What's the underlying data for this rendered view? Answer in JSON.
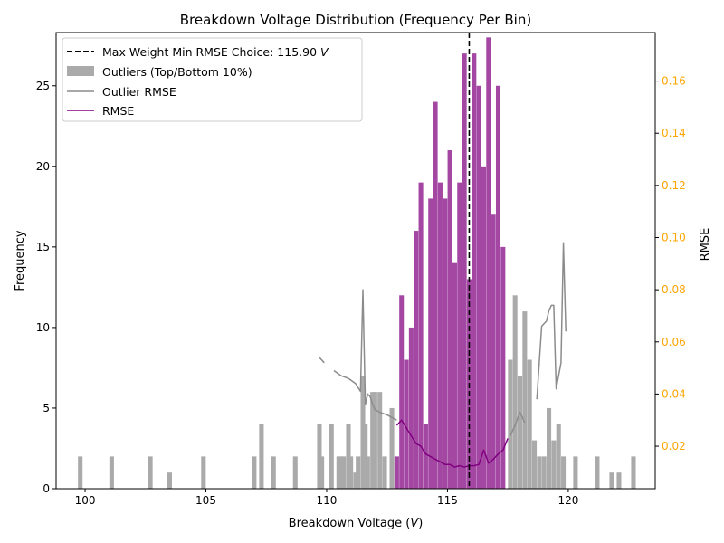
{
  "chart_data": {
    "type": "bar",
    "title": "Breakdown Voltage Distribution (Frequency Per Bin)",
    "xlabel": "Breakdown Voltage (",
    "xlabel_unit": "V",
    "xlabel_close": ")",
    "ylabel_left": "Frequency",
    "ylabel_right": "RMSE",
    "xlim": [
      98.8,
      123.6
    ],
    "ylim_left": [
      0,
      28.3
    ],
    "ylim_right": [
      0.0037,
      0.1786
    ],
    "x_ticks": [
      100,
      105,
      110,
      115,
      120
    ],
    "y_ticks_left": [
      0,
      5,
      10,
      15,
      20,
      25
    ],
    "y_ticks_right": [
      0.02,
      0.04,
      0.06,
      0.08,
      0.1,
      0.12,
      0.14,
      0.16
    ],
    "bin_width": 0.2,
    "colors": {
      "outlier_bars": "#aaaaaa",
      "main_bars": "#a347a3",
      "outlier_rmse": "#8c8c8c",
      "rmse": "#800080",
      "vline": "#000000",
      "right_axis": "#ffa500"
    },
    "vline": {
      "x": 115.9
    },
    "legend": {
      "placement": "top-left",
      "entries": [
        {
          "label": "Max Weight Min RMSE Choice: 115.90 ",
          "label_unit": "V",
          "style": "dashed-line"
        },
        {
          "label": "Outliers (Top/Bottom 10%)",
          "style": "patch"
        },
        {
          "label": "Outlier RMSE",
          "style": "line-gray"
        },
        {
          "label": "RMSE",
          "style": "line-purple"
        }
      ]
    },
    "series": [
      {
        "name": "Outliers (Top/Bottom 10%)",
        "kind": "bars",
        "x": [
          99.8,
          101.1,
          102.7,
          103.5,
          104.9,
          107.0,
          107.3,
          107.8,
          108.7,
          109.7,
          109.8,
          110.2,
          110.5,
          110.6,
          110.7,
          110.9,
          111.0,
          111.2,
          111.3,
          111.5,
          111.6,
          111.7,
          111.9,
          112.0,
          112.2,
          112.4,
          112.7,
          117.6,
          117.8,
          118.0,
          118.2,
          118.4,
          118.6,
          118.8,
          119.0,
          119.2,
          119.4,
          119.6,
          119.8,
          120.3,
          121.2,
          121.8,
          122.1,
          122.7
        ],
        "values": [
          2,
          2,
          2,
          1,
          2,
          2,
          4,
          2,
          2,
          4,
          2,
          4,
          2,
          2,
          2,
          4,
          2,
          1,
          2,
          7,
          4,
          2,
          6,
          6,
          6,
          2,
          5,
          8,
          12,
          7,
          11,
          8,
          3,
          2,
          2,
          5,
          3,
          4,
          2,
          2,
          2,
          1,
          1,
          2
        ]
      },
      {
        "name": "",
        "kind": "bars",
        "x": [
          112.9,
          113.1,
          113.3,
          113.5,
          113.7,
          113.9,
          114.1,
          114.3,
          114.5,
          114.7,
          114.9,
          115.1,
          115.3,
          115.5,
          115.7,
          115.9,
          116.1,
          116.3,
          116.5,
          116.7,
          116.9,
          117.1,
          117.3
        ],
        "values": [
          2,
          12,
          8,
          10,
          16,
          19,
          4,
          18,
          24,
          19,
          18,
          21,
          14,
          19,
          27,
          13,
          27,
          25,
          20,
          28,
          17,
          25,
          15
        ]
      },
      {
        "name": "Outlier RMSE",
        "kind": "line",
        "axis": "right",
        "segments": [
          {
            "x": [
              109.7,
              109.9
            ],
            "y": [
              0.054,
              0.052
            ]
          },
          {
            "x": [
              110.3,
              110.6,
              110.9
            ],
            "y": [
              0.049,
              0.047,
              0.046
            ]
          },
          {
            "x": [
              110.9,
              111.2,
              111.4,
              111.5,
              111.6,
              111.7,
              111.8,
              111.9,
              112.0,
              112.2,
              112.5,
              112.9
            ],
            "y": [
              0.046,
              0.044,
              0.041,
              0.08,
              0.036,
              0.04,
              0.039,
              0.036,
              0.034,
              0.033,
              0.032,
              0.03
            ]
          },
          {
            "x": [
              117.6,
              117.8,
              118.0,
              118.2
            ],
            "y": [
              0.024,
              0.028,
              0.033,
              0.029
            ]
          },
          {
            "x": [
              118.7,
              118.9,
              119.1,
              119.2,
              119.3,
              119.4,
              119.5,
              119.7,
              119.8,
              119.9
            ],
            "y": [
              0.038,
              0.066,
              0.068,
              0.072,
              0.074,
              0.074,
              0.042,
              0.052,
              0.098,
              0.064
            ]
          }
        ]
      },
      {
        "name": "RMSE",
        "kind": "line",
        "axis": "right",
        "x": [
          112.9,
          113.1,
          113.3,
          113.5,
          113.7,
          113.9,
          114.1,
          114.3,
          114.5,
          114.7,
          114.9,
          115.1,
          115.3,
          115.5,
          115.7,
          115.9,
          116.1,
          116.3,
          116.5,
          116.7,
          116.9,
          117.1,
          117.3,
          117.5
        ],
        "y": [
          0.028,
          0.03,
          0.027,
          0.024,
          0.021,
          0.02,
          0.017,
          0.016,
          0.015,
          0.014,
          0.013,
          0.013,
          0.012,
          0.0125,
          0.012,
          0.0125,
          0.0125,
          0.013,
          0.0185,
          0.0135,
          0.015,
          0.017,
          0.0185,
          0.023
        ]
      }
    ]
  }
}
